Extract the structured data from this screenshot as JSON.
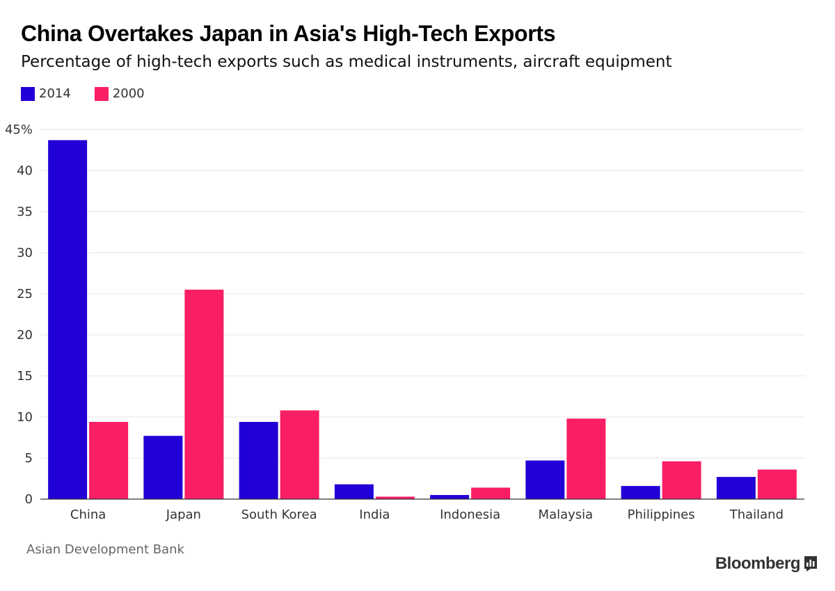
{
  "title": "China Overtakes Japan in Asia's High-Tech Exports",
  "subtitle": "Percentage of high-tech exports such as medical instruments, aircraft equipment",
  "legend": [
    {
      "label": "2014",
      "color": "#2200d8"
    },
    {
      "label": "2000",
      "color": "#fa1e64"
    }
  ],
  "source": "Asian Development Bank",
  "brand": "Bloomberg",
  "colors": {
    "series_2014": "#2200d8",
    "series_2000": "#fa1e64",
    "grid": "#e6e6e6",
    "axis": "#333333"
  },
  "chart_data": {
    "type": "bar",
    "title": "China Overtakes Japan in Asia's High-Tech Exports",
    "subtitle": "Percentage of high-tech exports such as medical instruments, aircraft equipment",
    "xlabel": "",
    "ylabel": "",
    "ylim": [
      0,
      45
    ],
    "yticks": [
      0,
      5,
      10,
      15,
      20,
      25,
      30,
      35,
      40,
      45
    ],
    "ytick_labels": [
      "0",
      "5",
      "10",
      "15",
      "20",
      "25",
      "30",
      "35",
      "40",
      "45%"
    ],
    "grid": true,
    "legend_position": "top-left",
    "categories": [
      "China",
      "Japan",
      "South Korea",
      "India",
      "Indonesia",
      "Malaysia",
      "Philippines",
      "Thailand"
    ],
    "series": [
      {
        "name": "2014",
        "color": "#2200d8",
        "values": [
          43.7,
          7.7,
          9.4,
          1.8,
          0.5,
          4.7,
          1.6,
          2.7
        ]
      },
      {
        "name": "2000",
        "color": "#fa1e64",
        "values": [
          9.4,
          25.5,
          10.8,
          0.3,
          1.4,
          9.8,
          4.6,
          3.6
        ]
      }
    ]
  }
}
